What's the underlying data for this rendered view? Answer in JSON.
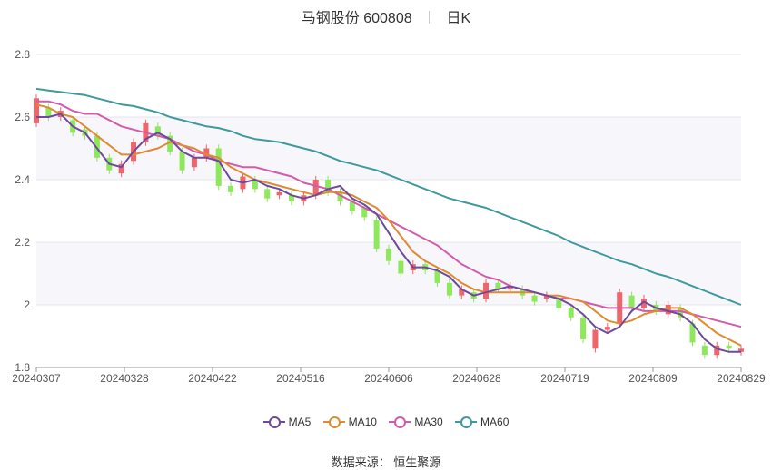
{
  "header": {
    "stock_name": "马钢股份",
    "stock_code": "600808",
    "period": "日K"
  },
  "source_text": "数据来源：  恒生聚源",
  "colors": {
    "up": "#f06569",
    "down": "#8ee85b",
    "ma5": "#6d4a9e",
    "ma10": "#e08a32",
    "ma30": "#d45bab",
    "ma60": "#3f9a9e"
  },
  "chart_data": {
    "type": "candlestick",
    "ylim": [
      1.8,
      2.8
    ],
    "yticks": [
      "1.8",
      "2",
      "2.2",
      "2.4",
      "2.6",
      "2.8"
    ],
    "x_tick_labels": [
      "20240307",
      "20240328",
      "20240422",
      "20240516",
      "20240606",
      "20240628",
      "20240719",
      "20240809",
      "20240829"
    ],
    "grid": true,
    "legend_position": "bottom",
    "series": [
      {
        "name": "MA5",
        "color": "#6d4a9e",
        "values": [
          2.6,
          2.6,
          2.61,
          2.57,
          2.55,
          2.5,
          2.45,
          2.44,
          2.49,
          2.53,
          2.55,
          2.53,
          2.49,
          2.47,
          2.47,
          2.46,
          2.4,
          2.39,
          2.4,
          2.38,
          2.37,
          2.35,
          2.34,
          2.35,
          2.37,
          2.38,
          2.34,
          2.32,
          2.29,
          2.23,
          2.17,
          2.12,
          2.12,
          2.11,
          2.09,
          2.05,
          2.03,
          2.04,
          2.05,
          2.06,
          2.05,
          2.04,
          2.03,
          2.02,
          2.0,
          1.97,
          1.93,
          1.91,
          1.93,
          1.98,
          2.01,
          1.99,
          1.98,
          1.97,
          1.94,
          1.89,
          1.86,
          1.85,
          1.85
        ]
      },
      {
        "name": "MA10",
        "color": "#e08a32",
        "values": [
          2.64,
          2.63,
          2.61,
          2.6,
          2.57,
          2.54,
          2.51,
          2.48,
          2.48,
          2.49,
          2.5,
          2.52,
          2.51,
          2.5,
          2.48,
          2.47,
          2.44,
          2.42,
          2.4,
          2.39,
          2.38,
          2.37,
          2.36,
          2.35,
          2.36,
          2.36,
          2.35,
          2.33,
          2.31,
          2.27,
          2.22,
          2.17,
          2.14,
          2.12,
          2.1,
          2.07,
          2.05,
          2.04,
          2.04,
          2.04,
          2.04,
          2.04,
          2.03,
          2.03,
          2.02,
          2.01,
          1.98,
          1.95,
          1.94,
          1.95,
          1.97,
          1.98,
          1.99,
          1.99,
          1.97,
          1.94,
          1.91,
          1.89,
          1.87
        ]
      },
      {
        "name": "MA30",
        "color": "#d45bab",
        "values": [
          2.65,
          2.65,
          2.64,
          2.62,
          2.61,
          2.61,
          2.59,
          2.57,
          2.56,
          2.55,
          2.54,
          2.53,
          2.51,
          2.49,
          2.48,
          2.46,
          2.45,
          2.44,
          2.44,
          2.43,
          2.42,
          2.41,
          2.39,
          2.38,
          2.37,
          2.35,
          2.33,
          2.31,
          2.29,
          2.27,
          2.25,
          2.23,
          2.21,
          2.19,
          2.16,
          2.13,
          2.11,
          2.09,
          2.08,
          2.06,
          2.05,
          2.04,
          2.03,
          2.02,
          2.02,
          2.01,
          2.0,
          1.99,
          1.99,
          1.99,
          1.98,
          1.98,
          1.98,
          1.98,
          1.97,
          1.96,
          1.95,
          1.94,
          1.93
        ]
      },
      {
        "name": "MA60",
        "color": "#3f9a9e",
        "values": [
          2.69,
          2.685,
          2.68,
          2.675,
          2.67,
          2.66,
          2.65,
          2.64,
          2.635,
          2.625,
          2.615,
          2.6,
          2.59,
          2.58,
          2.57,
          2.565,
          2.555,
          2.54,
          2.53,
          2.525,
          2.52,
          2.51,
          2.5,
          2.49,
          2.475,
          2.46,
          2.45,
          2.44,
          2.43,
          2.415,
          2.4,
          2.385,
          2.37,
          2.355,
          2.34,
          2.33,
          2.32,
          2.31,
          2.295,
          2.28,
          2.265,
          2.25,
          2.235,
          2.22,
          2.2,
          2.185,
          2.17,
          2.155,
          2.14,
          2.13,
          2.115,
          2.1,
          2.09,
          2.075,
          2.06,
          2.045,
          2.03,
          2.015,
          2.0
        ]
      }
    ],
    "candles_approx": [
      [
        2.58,
        2.66
      ],
      [
        2.63,
        2.6
      ],
      [
        2.6,
        2.62
      ],
      [
        2.59,
        2.55
      ],
      [
        2.56,
        2.54
      ],
      [
        2.54,
        2.47
      ],
      [
        2.47,
        2.43
      ],
      [
        2.42,
        2.45
      ],
      [
        2.46,
        2.52
      ],
      [
        2.52,
        2.58
      ],
      [
        2.57,
        2.54
      ],
      [
        2.54,
        2.49
      ],
      [
        2.49,
        2.43
      ],
      [
        2.44,
        2.47
      ],
      [
        2.47,
        2.5
      ],
      [
        2.5,
        2.38
      ],
      [
        2.38,
        2.36
      ],
      [
        2.37,
        2.41
      ],
      [
        2.4,
        2.37
      ],
      [
        2.37,
        2.34
      ],
      [
        2.35,
        2.36
      ],
      [
        2.35,
        2.33
      ],
      [
        2.33,
        2.35
      ],
      [
        2.35,
        2.4
      ],
      [
        2.4,
        2.36
      ],
      [
        2.36,
        2.33
      ],
      [
        2.33,
        2.3
      ],
      [
        2.31,
        2.28
      ],
      [
        2.27,
        2.18
      ],
      [
        2.18,
        2.14
      ],
      [
        2.14,
        2.1
      ],
      [
        2.11,
        2.13
      ],
      [
        2.13,
        2.11
      ],
      [
        2.11,
        2.07
      ],
      [
        2.07,
        2.03
      ],
      [
        2.03,
        2.05
      ],
      [
        2.04,
        2.02
      ],
      [
        2.02,
        2.07
      ],
      [
        2.07,
        2.05
      ],
      [
        2.05,
        2.06
      ],
      [
        2.05,
        2.03
      ],
      [
        2.03,
        2.01
      ],
      [
        2.02,
        2.03
      ],
      [
        2.02,
        1.99
      ],
      [
        1.99,
        1.96
      ],
      [
        1.96,
        1.89
      ],
      [
        1.86,
        1.92
      ],
      [
        1.92,
        1.93
      ],
      [
        1.94,
        2.04
      ],
      [
        2.03,
        1.99
      ],
      [
        1.99,
        2.02
      ],
      [
        2.0,
        1.98
      ],
      [
        1.97,
        2.0
      ],
      [
        1.99,
        1.96
      ],
      [
        1.94,
        1.88
      ],
      [
        1.87,
        1.84
      ],
      [
        1.84,
        1.87
      ],
      [
        1.87,
        1.86
      ],
      [
        1.85,
        1.86
      ]
    ]
  }
}
